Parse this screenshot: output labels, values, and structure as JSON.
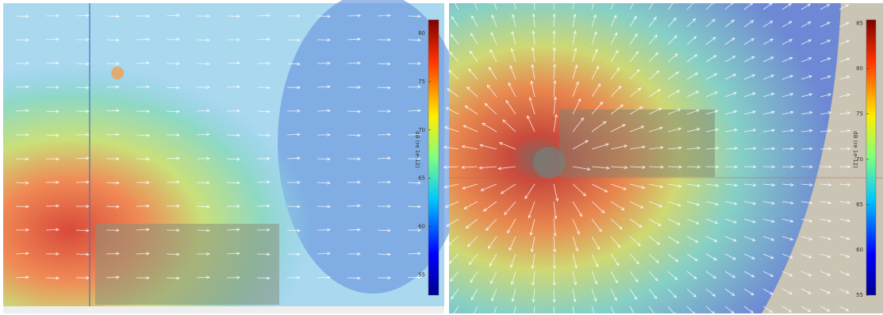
{
  "panels": [
    {
      "colorbar": {
        "label": "dB (re 1e-12)",
        "range": [
          52.9,
          81.4
        ],
        "ticks": [
          80,
          75,
          70,
          65,
          60,
          55
        ]
      }
    },
    {
      "colorbar": {
        "label": "dB (re 1e-12)",
        "range": [
          55,
          85.4
        ],
        "ticks": [
          85,
          80,
          75,
          70,
          65,
          60,
          55
        ]
      }
    }
  ]
}
